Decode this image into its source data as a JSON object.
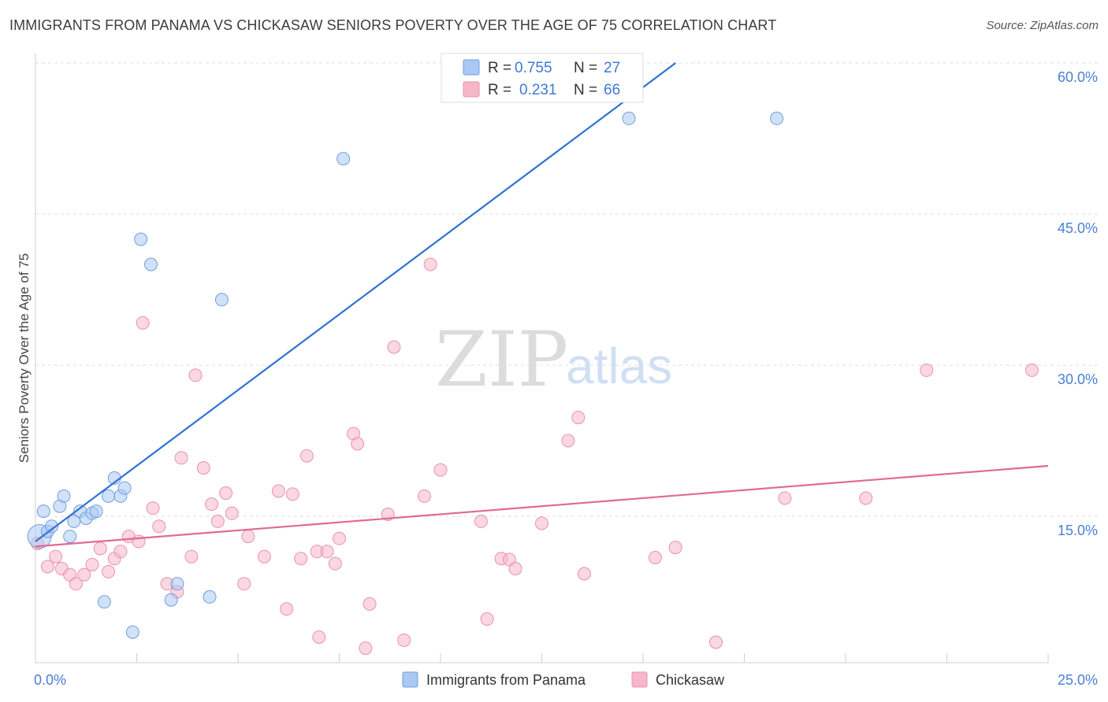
{
  "title": "IMMIGRANTS FROM PANAMA VS CHICKASAW SENIORS POVERTY OVER THE AGE OF 75 CORRELATION CHART",
  "source": "Source: ZipAtlas.com",
  "watermark": {
    "zip": "ZIP",
    "atlas": "atlas"
  },
  "legend": {
    "rows": [
      {
        "r_label": "R =",
        "r_value": "0.755",
        "n_label": "N =",
        "n_value": "27",
        "color": "#a9c8f2"
      },
      {
        "r_label": "R =",
        "r_value": "0.231",
        "n_label": "N =",
        "n_value": "66",
        "color": "#f7b6c9"
      }
    ]
  },
  "chart_data": {
    "type": "scatter",
    "title": "IMMIGRANTS FROM PANAMA VS CHICKASAW SENIORS POVERTY OVER THE AGE OF 75 CORRELATION CHART",
    "xlabel": "",
    "ylabel": "Seniors Poverty Over the Age of 75",
    "xlim": [
      0,
      25
    ],
    "ylim": [
      0,
      60
    ],
    "x_tick_labels": [
      "0.0%",
      "25.0%"
    ],
    "y_tick_labels": [
      "15.0%",
      "30.0%",
      "45.0%",
      "60.0%"
    ],
    "y_ticks": [
      15,
      30,
      45,
      60
    ],
    "grid": true,
    "legend_position": "top-center",
    "series": [
      {
        "name": "Immigrants from Panama",
        "color": "#a9c8f2",
        "stroke": "#6f9fe0",
        "line_color": "#2f72d2",
        "trend": {
          "x": [
            0.0,
            17.8
          ],
          "y": [
            12.5,
            66.0
          ]
        },
        "points": [
          {
            "x": 0.1,
            "y": 13.0,
            "big": true
          },
          {
            "x": 0.2,
            "y": 15.5
          },
          {
            "x": 0.3,
            "y": 13.5
          },
          {
            "x": 0.4,
            "y": 14.0
          },
          {
            "x": 0.6,
            "y": 16.0
          },
          {
            "x": 0.7,
            "y": 17.0
          },
          {
            "x": 0.85,
            "y": 13.0
          },
          {
            "x": 0.95,
            "y": 14.5
          },
          {
            "x": 1.1,
            "y": 15.5
          },
          {
            "x": 1.25,
            "y": 14.8
          },
          {
            "x": 1.4,
            "y": 15.3
          },
          {
            "x": 1.5,
            "y": 15.5
          },
          {
            "x": 1.7,
            "y": 6.5
          },
          {
            "x": 1.8,
            "y": 17.0
          },
          {
            "x": 1.95,
            "y": 18.8
          },
          {
            "x": 2.1,
            "y": 17.0
          },
          {
            "x": 2.2,
            "y": 17.8
          },
          {
            "x": 2.4,
            "y": 3.5
          },
          {
            "x": 2.6,
            "y": 42.5
          },
          {
            "x": 2.85,
            "y": 40.0
          },
          {
            "x": 3.35,
            "y": 6.7
          },
          {
            "x": 3.5,
            "y": 8.3
          },
          {
            "x": 4.3,
            "y": 7.0
          },
          {
            "x": 4.6,
            "y": 36.5
          },
          {
            "x": 7.6,
            "y": 50.5
          },
          {
            "x": 14.65,
            "y": 54.5
          },
          {
            "x": 18.3,
            "y": 54.5
          }
        ]
      },
      {
        "name": "Chickasaw",
        "color": "#f7b6c9",
        "stroke": "#e992ad",
        "line_color": "#e06a93",
        "trend": {
          "x": [
            0.0,
            25.0
          ],
          "y": [
            12.0,
            20.0
          ]
        },
        "points": [
          {
            "x": 0.3,
            "y": 10.0
          },
          {
            "x": 0.5,
            "y": 11.0
          },
          {
            "x": 0.65,
            "y": 9.8
          },
          {
            "x": 0.85,
            "y": 9.2
          },
          {
            "x": 1.0,
            "y": 8.3
          },
          {
            "x": 1.2,
            "y": 9.2
          },
          {
            "x": 1.4,
            "y": 10.2
          },
          {
            "x": 1.6,
            "y": 11.8
          },
          {
            "x": 1.8,
            "y": 9.5
          },
          {
            "x": 1.95,
            "y": 10.8
          },
          {
            "x": 2.1,
            "y": 11.5
          },
          {
            "x": 2.3,
            "y": 13.0
          },
          {
            "x": 2.55,
            "y": 12.5
          },
          {
            "x": 2.65,
            "y": 34.2
          },
          {
            "x": 2.9,
            "y": 15.8
          },
          {
            "x": 3.05,
            "y": 14.0
          },
          {
            "x": 3.25,
            "y": 8.3
          },
          {
            "x": 3.5,
            "y": 7.5
          },
          {
            "x": 3.6,
            "y": 20.8
          },
          {
            "x": 3.85,
            "y": 11.0
          },
          {
            "x": 3.95,
            "y": 29.0
          },
          {
            "x": 4.15,
            "y": 19.8
          },
          {
            "x": 4.35,
            "y": 16.2
          },
          {
            "x": 4.5,
            "y": 14.5
          },
          {
            "x": 4.7,
            "y": 17.3
          },
          {
            "x": 4.85,
            "y": 15.3
          },
          {
            "x": 5.15,
            "y": 8.3
          },
          {
            "x": 5.25,
            "y": 13.0
          },
          {
            "x": 5.65,
            "y": 11.0
          },
          {
            "x": 6.0,
            "y": 17.5
          },
          {
            "x": 6.2,
            "y": 5.8
          },
          {
            "x": 6.35,
            "y": 17.2
          },
          {
            "x": 6.55,
            "y": 10.8
          },
          {
            "x": 6.7,
            "y": 21.0
          },
          {
            "x": 6.95,
            "y": 11.5
          },
          {
            "x": 7.0,
            "y": 3.0
          },
          {
            "x": 7.2,
            "y": 11.5
          },
          {
            "x": 7.4,
            "y": 10.3
          },
          {
            "x": 7.5,
            "y": 12.8
          },
          {
            "x": 7.85,
            "y": 23.2
          },
          {
            "x": 7.95,
            "y": 22.2
          },
          {
            "x": 8.15,
            "y": 1.9
          },
          {
            "x": 8.25,
            "y": 6.3
          },
          {
            "x": 8.7,
            "y": 15.2
          },
          {
            "x": 8.85,
            "y": 31.8
          },
          {
            "x": 9.1,
            "y": 2.7
          },
          {
            "x": 9.6,
            "y": 17.0
          },
          {
            "x": 9.75,
            "y": 40.0
          },
          {
            "x": 10.0,
            "y": 19.6
          },
          {
            "x": 11.0,
            "y": 14.5
          },
          {
            "x": 11.15,
            "y": 4.8
          },
          {
            "x": 11.5,
            "y": 10.8
          },
          {
            "x": 11.7,
            "y": 10.7
          },
          {
            "x": 11.85,
            "y": 9.8
          },
          {
            "x": 12.5,
            "y": 14.3
          },
          {
            "x": 13.15,
            "y": 22.5
          },
          {
            "x": 13.4,
            "y": 24.8
          },
          {
            "x": 13.55,
            "y": 9.3
          },
          {
            "x": 15.3,
            "y": 10.9
          },
          {
            "x": 15.8,
            "y": 11.9
          },
          {
            "x": 16.8,
            "y": 2.5
          },
          {
            "x": 18.5,
            "y": 16.8
          },
          {
            "x": 20.5,
            "y": 16.8
          },
          {
            "x": 22.0,
            "y": 29.5
          },
          {
            "x": 24.6,
            "y": 29.5
          },
          {
            "x": 0.05,
            "y": 12.3
          }
        ]
      }
    ]
  }
}
